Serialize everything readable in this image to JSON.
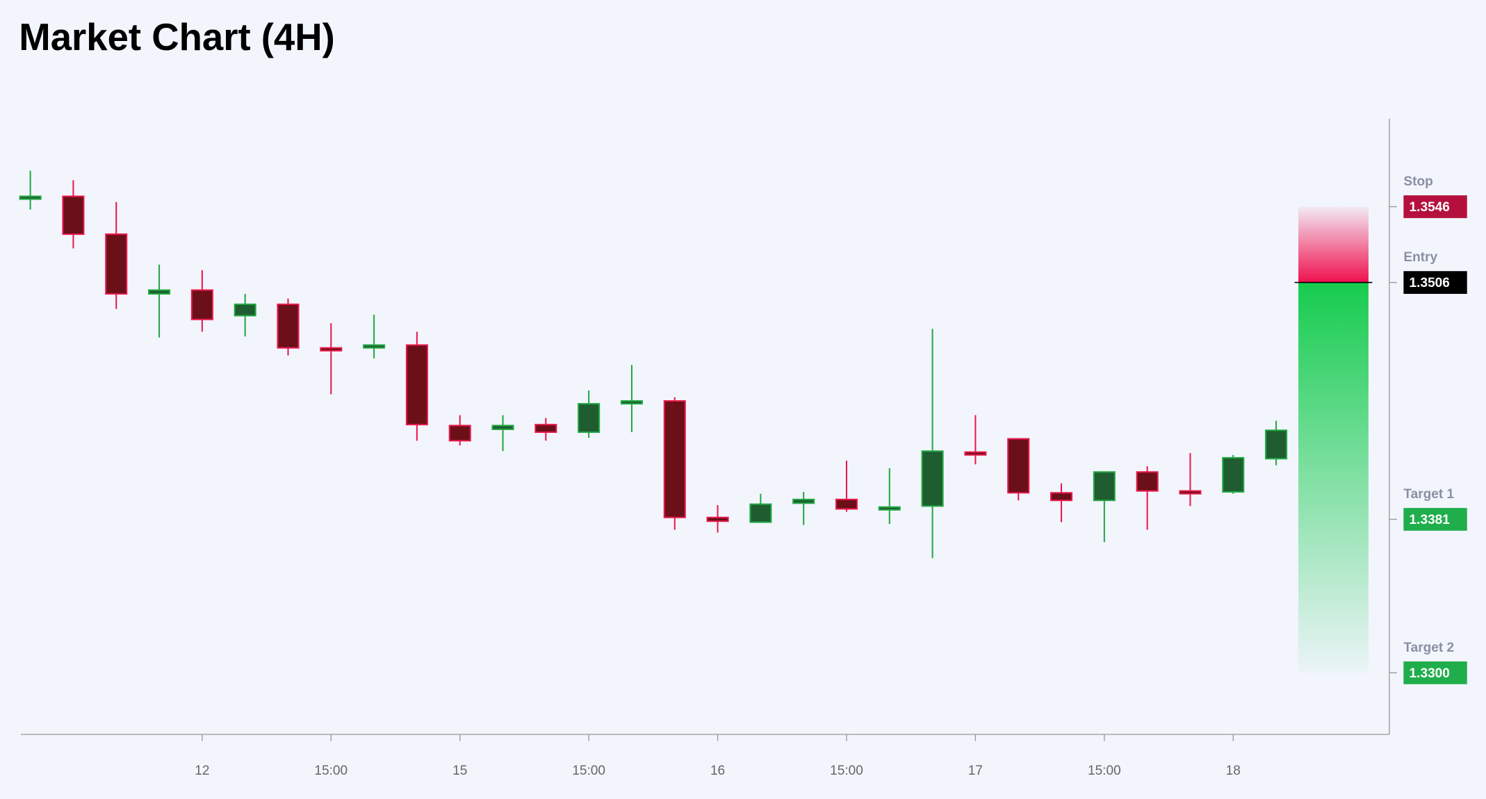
{
  "chart_data": {
    "type": "candlestick",
    "title": "Market Chart (4H)",
    "categories": [
      null,
      null,
      null,
      null,
      "12",
      null,
      null,
      "15:00",
      null,
      null,
      "15",
      null,
      null,
      "15:00",
      null,
      null,
      "16",
      null,
      null,
      "15:00",
      null,
      null,
      "17",
      null,
      null,
      "15:00",
      null,
      null,
      "18",
      null
    ],
    "open": [
      1.35505,
      1.35515,
      1.35315,
      1.35,
      1.3502,
      1.34885,
      1.34945,
      1.34715,
      1.34715,
      1.3473,
      1.34305,
      1.34285,
      1.3431,
      1.3427,
      1.3442,
      1.34435,
      1.3382,
      1.33795,
      1.33895,
      1.33915,
      1.3387,
      1.3388,
      1.34165,
      1.34235,
      1.3395,
      1.3391,
      1.3406,
      1.3396,
      1.33955,
      1.3413
    ],
    "high": [
      1.3565,
      1.356,
      1.35485,
      1.35155,
      1.35125,
      1.35,
      1.34975,
      1.34845,
      1.3489,
      1.348,
      1.3436,
      1.3436,
      1.34345,
      1.3449,
      1.34625,
      1.34455,
      1.33885,
      1.33945,
      1.33955,
      1.3412,
      1.3408,
      1.34815,
      1.3436,
      1.34235,
      1.34,
      1.3406,
      1.3409,
      1.3416,
      1.3415,
      1.3433
    ],
    "low": [
      1.35445,
      1.3524,
      1.3492,
      1.3477,
      1.348,
      1.34775,
      1.34675,
      1.3447,
      1.3466,
      1.34225,
      1.342,
      1.3417,
      1.34225,
      1.3424,
      1.3427,
      1.33755,
      1.3374,
      1.33795,
      1.3378,
      1.3385,
      1.33785,
      1.33605,
      1.341,
      1.3391,
      1.33795,
      1.3369,
      1.33755,
      1.3388,
      1.33945,
      1.34095
    ],
    "close": [
      1.35515,
      1.35315,
      1.35,
      1.3502,
      1.34865,
      1.34945,
      1.34715,
      1.34705,
      1.3473,
      1.3431,
      1.34225,
      1.34305,
      1.3427,
      1.3442,
      1.34435,
      1.3382,
      1.338,
      1.3389,
      1.33915,
      1.33865,
      1.33875,
      1.3417,
      1.3415,
      1.3395,
      1.3391,
      1.3406,
      1.3396,
      1.3395,
      1.34135,
      1.3428
    ],
    "up_color": "#22a845",
    "down_color": "#e8194d",
    "ylim": [
      1.32675,
      1.35925
    ],
    "levels": {
      "names": [
        "Stop",
        "Entry",
        "Target 1",
        "Target 2"
      ],
      "values": [
        1.3546,
        1.3506,
        1.3381,
        1.33
      ],
      "value_labels": [
        "1.3546",
        "1.3506",
        "1.3381",
        "1.3300"
      ],
      "colors": [
        "#b5103d",
        "#000000",
        "#1fae4b",
        "#1fae4b"
      ]
    }
  }
}
